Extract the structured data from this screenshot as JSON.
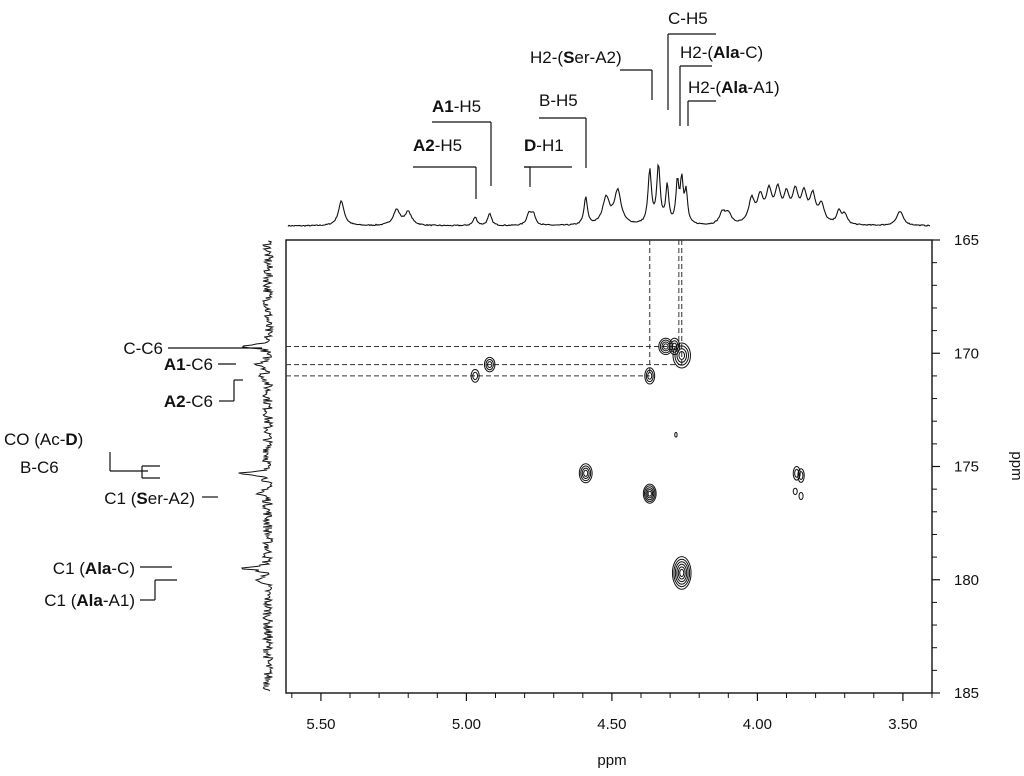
{
  "chart_data": {
    "type": "2D NMR (HMBC) contour plot",
    "x_axis": {
      "label": "ppm",
      "reversed": true,
      "range": [
        5.62,
        3.4
      ],
      "ticks": [
        "5.50",
        "5.00",
        "4.50",
        "4.00",
        "3.50"
      ],
      "tick_values": [
        5.5,
        5.0,
        4.5,
        4.0,
        3.5
      ]
    },
    "y_axis": {
      "label": "ppm",
      "range": [
        165,
        185
      ],
      "ticks": [
        "165",
        "170",
        "175",
        "180",
        "185"
      ],
      "tick_values": [
        165,
        170,
        175,
        180,
        185
      ]
    },
    "top_labels": [
      {
        "parts": [
          {
            "t": "A2",
            "b": true
          },
          {
            "t": "-H5",
            "b": false
          }
        ],
        "ppm": 4.97
      },
      {
        "parts": [
          {
            "t": "A1",
            "b": true
          },
          {
            "t": "-H5",
            "b": false
          }
        ],
        "ppm": 4.92
      },
      {
        "parts": [
          {
            "t": "D",
            "b": true
          },
          {
            "t": "-H1",
            "b": false
          }
        ],
        "ppm": 4.78
      },
      {
        "parts": [
          {
            "t": "B-H5",
            "b": false
          }
        ],
        "ppm": 4.59
      },
      {
        "parts": [
          {
            "t": "H2-(",
            "b": false
          },
          {
            "t": "S",
            "b": true
          },
          {
            "t": "er",
            "b": false
          },
          {
            "t": "-A2)",
            "b": false
          }
        ],
        "ppm": 4.37
      },
      {
        "parts": [
          {
            "t": "C-H5",
            "b": false
          }
        ],
        "ppm": 4.31
      },
      {
        "parts": [
          {
            "t": "H2-(",
            "b": false
          },
          {
            "t": "Ala",
            "b": true
          },
          {
            "t": "-C)",
            "b": false
          }
        ],
        "ppm": 4.27
      },
      {
        "parts": [
          {
            "t": "H2-(",
            "b": false
          },
          {
            "t": "Ala",
            "b": true
          },
          {
            "t": "-A1)",
            "b": false
          }
        ],
        "ppm": 4.26
      }
    ],
    "left_labels": [
      {
        "parts": [
          {
            "t": "C-C6",
            "b": false
          }
        ],
        "ppm": 169.7
      },
      {
        "parts": [
          {
            "t": "A1",
            "b": true
          },
          {
            "t": "-C6",
            "b": false
          }
        ],
        "ppm": 170.5
      },
      {
        "parts": [
          {
            "t": "A2",
            "b": true
          },
          {
            "t": "-C6",
            "b": false
          }
        ],
        "ppm": 171.0
      },
      {
        "parts": [
          {
            "t": "CO (Ac-",
            "b": false
          },
          {
            "t": "D",
            "b": true
          },
          {
            "t": ")",
            "b": false
          }
        ],
        "ppm": 175.2
      },
      {
        "parts": [
          {
            "t": "B-C6",
            "b": false
          }
        ],
        "ppm": 175.4
      },
      {
        "parts": [
          {
            "t": "C1 (",
            "b": false
          },
          {
            "t": "S",
            "b": true
          },
          {
            "t": "er",
            "b": false
          },
          {
            "t": "-A2)",
            "b": false
          }
        ],
        "ppm": 176.2
      },
      {
        "parts": [
          {
            "t": "C1 (",
            "b": false
          },
          {
            "t": "Ala",
            "b": true
          },
          {
            "t": "-C)",
            "b": false
          }
        ],
        "ppm": 179.5
      },
      {
        "parts": [
          {
            "t": "C1 (",
            "b": false
          },
          {
            "t": "Ala",
            "b": true
          },
          {
            "t": "-A1)",
            "b": false
          }
        ],
        "ppm": 180.0
      }
    ],
    "cross_peaks": [
      {
        "h": 4.97,
        "c": 171.0,
        "rx": 0.014,
        "ry": 0.28,
        "levels": 2
      },
      {
        "h": 4.92,
        "c": 170.5,
        "rx": 0.018,
        "ry": 0.32,
        "levels": 3
      },
      {
        "h": 4.37,
        "c": 171.0,
        "rx": 0.017,
        "ry": 0.36,
        "levels": 3
      },
      {
        "h": 4.315,
        "c": 169.7,
        "rx": 0.024,
        "ry": 0.36,
        "levels": 4
      },
      {
        "h": 4.285,
        "c": 169.7,
        "rx": 0.018,
        "ry": 0.36,
        "levels": 3
      },
      {
        "h": 4.26,
        "c": 170.1,
        "rx": 0.03,
        "ry": 0.55,
        "levels": 4
      },
      {
        "h": 4.59,
        "c": 175.3,
        "rx": 0.022,
        "ry": 0.42,
        "levels": 4
      },
      {
        "h": 4.37,
        "c": 176.2,
        "rx": 0.022,
        "ry": 0.42,
        "levels": 5
      },
      {
        "h": 4.26,
        "c": 179.7,
        "rx": 0.032,
        "ry": 0.72,
        "levels": 6
      },
      {
        "h": 4.28,
        "c": 173.6,
        "rx": 0.004,
        "ry": 0.1,
        "levels": 1
      },
      {
        "h": 3.865,
        "c": 175.3,
        "rx": 0.012,
        "ry": 0.3,
        "levels": 2
      },
      {
        "h": 3.85,
        "c": 175.4,
        "rx": 0.011,
        "ry": 0.3,
        "levels": 2
      },
      {
        "h": 3.87,
        "c": 176.1,
        "rx": 0.007,
        "ry": 0.14,
        "levels": 1
      },
      {
        "h": 3.85,
        "c": 176.3,
        "rx": 0.007,
        "ry": 0.16,
        "levels": 1
      }
    ],
    "guide_lines": [
      {
        "h": 4.37,
        "c": 171.0
      },
      {
        "h": 4.27,
        "c": 169.7
      },
      {
        "h": 4.26,
        "c": 170.5
      }
    ],
    "top_spectrum_peaks": [
      {
        "ppm": 5.43,
        "height": 0.88,
        "width": 0.012
      },
      {
        "ppm": 5.24,
        "height": 0.55,
        "width": 0.014
      },
      {
        "ppm": 5.2,
        "height": 0.47,
        "width": 0.014
      },
      {
        "ppm": 4.97,
        "height": 0.3,
        "width": 0.008
      },
      {
        "ppm": 4.92,
        "height": 0.42,
        "width": 0.008
      },
      {
        "ppm": 4.785,
        "height": 0.42,
        "width": 0.009
      },
      {
        "ppm": 4.77,
        "height": 0.38,
        "width": 0.009
      },
      {
        "ppm": 4.59,
        "height": 0.98,
        "width": 0.007
      },
      {
        "ppm": 4.52,
        "height": 0.95,
        "width": 0.014
      },
      {
        "ppm": 4.48,
        "height": 1.2,
        "width": 0.014
      },
      {
        "ppm": 4.37,
        "height": 1.9,
        "width": 0.007
      },
      {
        "ppm": 4.34,
        "height": 2.05,
        "width": 0.007
      },
      {
        "ppm": 4.31,
        "height": 1.35,
        "width": 0.006
      },
      {
        "ppm": 4.275,
        "height": 1.45,
        "width": 0.006
      },
      {
        "ppm": 4.26,
        "height": 1.5,
        "width": 0.006
      },
      {
        "ppm": 4.245,
        "height": 1.1,
        "width": 0.006
      },
      {
        "ppm": 4.12,
        "height": 0.42,
        "width": 0.012
      },
      {
        "ppm": 4.1,
        "height": 0.38,
        "width": 0.012
      },
      {
        "ppm": 4.02,
        "height": 0.85,
        "width": 0.012
      },
      {
        "ppm": 3.99,
        "height": 0.9,
        "width": 0.012
      },
      {
        "ppm": 3.96,
        "height": 1.05,
        "width": 0.012
      },
      {
        "ppm": 3.93,
        "height": 1.1,
        "width": 0.012
      },
      {
        "ppm": 3.9,
        "height": 0.9,
        "width": 0.012
      },
      {
        "ppm": 3.87,
        "height": 1.05,
        "width": 0.012
      },
      {
        "ppm": 3.84,
        "height": 1.0,
        "width": 0.012
      },
      {
        "ppm": 3.81,
        "height": 0.95,
        "width": 0.012
      },
      {
        "ppm": 3.78,
        "height": 0.65,
        "width": 0.012
      },
      {
        "ppm": 3.72,
        "height": 0.45,
        "width": 0.01
      },
      {
        "ppm": 3.7,
        "height": 0.35,
        "width": 0.01
      },
      {
        "ppm": 3.51,
        "height": 0.5,
        "width": 0.014
      }
    ],
    "left_spectrum_peaks": [
      {
        "ppm": 169.7,
        "height": 1.0,
        "width": 0.06
      },
      {
        "ppm": 170.5,
        "height": 0.35,
        "width": 0.06
      },
      {
        "ppm": 171.0,
        "height": 0.32,
        "width": 0.06
      },
      {
        "ppm": 175.3,
        "height": 0.85,
        "width": 0.07
      },
      {
        "ppm": 176.2,
        "height": 0.4,
        "width": 0.06
      },
      {
        "ppm": 179.5,
        "height": 1.05,
        "width": 0.06
      },
      {
        "ppm": 180.0,
        "height": 0.45,
        "width": 0.06
      }
    ]
  }
}
